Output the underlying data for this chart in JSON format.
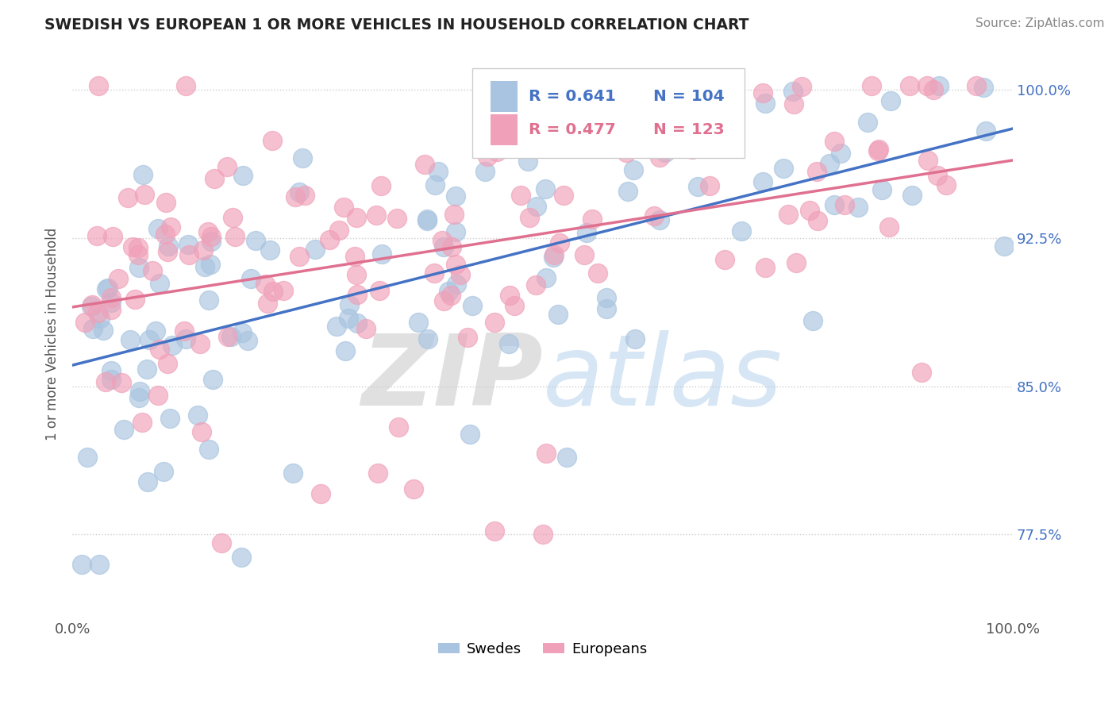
{
  "title": "SWEDISH VS EUROPEAN 1 OR MORE VEHICLES IN HOUSEHOLD CORRELATION CHART",
  "source": "Source: ZipAtlas.com",
  "ylabel": "1 or more Vehicles in Household",
  "xlim": [
    0.0,
    1.0
  ],
  "ylim": [
    0.735,
    1.018
  ],
  "yticks": [
    0.775,
    0.85,
    0.925,
    1.0
  ],
  "ytick_labels": [
    "77.5%",
    "85.0%",
    "92.5%",
    "100.0%"
  ],
  "swedes_color": "#a8c4e0",
  "europeans_color": "#f0a0b8",
  "trend_blue": "#4472c4",
  "trend_pink": "#e07090",
  "legend_blue_r": "R = 0.641",
  "legend_blue_n": "N = 104",
  "legend_pink_r": "R = 0.477",
  "legend_pink_n": "N = 123",
  "watermark_zip": "ZIP",
  "watermark_atlas": "atlas",
  "title_color": "#222222",
  "tick_label_color_right": "#4472c4",
  "background_color": "#ffffff"
}
